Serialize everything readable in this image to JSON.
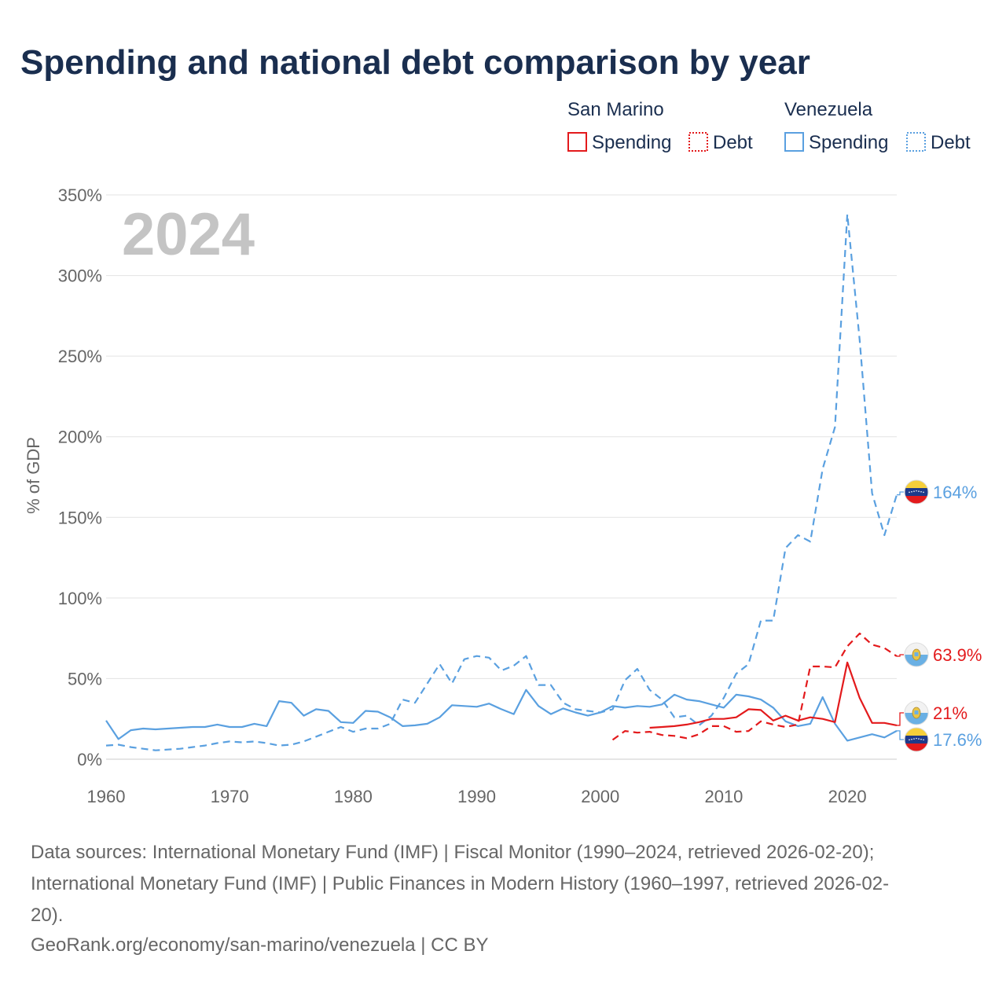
{
  "chart_data": {
    "type": "line",
    "title": "Spending and national debt comparison by year",
    "ylabel": "% of GDP",
    "xlabel": "",
    "xlim": [
      1960,
      2024
    ],
    "ylim": [
      0,
      350
    ],
    "x_ticks": [
      1960,
      1970,
      1980,
      1990,
      2000,
      2010,
      2020
    ],
    "y_ticks": [
      0,
      50,
      100,
      150,
      200,
      250,
      300,
      350
    ],
    "y_tick_labels": [
      "0%",
      "50%",
      "100%",
      "150%",
      "200%",
      "250%",
      "300%",
      "350%"
    ],
    "x_tick_labels": [
      "1960",
      "1970",
      "1980",
      "1990",
      "2000",
      "2010",
      "2020"
    ],
    "grid": true,
    "year_watermark": "2024",
    "legend": {
      "placement": "top-right",
      "groups": [
        {
          "name": "San Marino",
          "items": [
            "Spending",
            "Debt"
          ],
          "color": "#e31a1c"
        },
        {
          "name": "Venezuela",
          "items": [
            "Spending",
            "Debt"
          ],
          "color": "#5aa0e0"
        }
      ]
    },
    "series": [
      {
        "name": "Venezuela Debt",
        "country": "Venezuela",
        "metric": "Debt",
        "style": "dashed",
        "color": "#5aa0e0",
        "x": [
          1960,
          1961,
          1962,
          1963,
          1964,
          1965,
          1966,
          1967,
          1968,
          1969,
          1970,
          1971,
          1972,
          1973,
          1974,
          1975,
          1976,
          1977,
          1978,
          1979,
          1980,
          1981,
          1982,
          1983,
          1984,
          1985,
          1986,
          1987,
          1988,
          1989,
          1990,
          1991,
          1992,
          1993,
          1994,
          1995,
          1996,
          1997,
          1998,
          1999,
          2000,
          2001,
          2002,
          2003,
          2004,
          2005,
          2006,
          2007,
          2008,
          2009,
          2010,
          2011,
          2012,
          2013,
          2014,
          2015,
          2016,
          2017,
          2018,
          2019,
          2020,
          2021,
          2022,
          2023,
          2024
        ],
        "values": [
          8.5,
          9,
          7.5,
          6.5,
          5.5,
          6,
          6.5,
          7.5,
          8.5,
          10,
          11,
          10.5,
          11,
          10,
          8.5,
          9,
          11,
          14,
          17,
          20,
          17,
          19,
          19,
          22,
          37,
          35,
          47,
          59,
          47,
          62,
          64,
          63,
          55,
          58,
          64,
          46,
          46,
          35,
          31,
          30,
          29,
          31,
          49,
          56,
          43,
          37,
          26,
          27,
          21,
          27,
          38,
          53,
          59,
          86,
          86,
          131,
          139,
          135,
          180,
          206,
          338,
          260,
          165,
          139,
          164
        ]
      },
      {
        "name": "Venezuela Spending",
        "country": "Venezuela",
        "metric": "Spending",
        "style": "solid",
        "color": "#5aa0e0",
        "x": [
          1960,
          1961,
          1962,
          1963,
          1964,
          1965,
          1966,
          1967,
          1968,
          1969,
          1970,
          1971,
          1972,
          1973,
          1974,
          1975,
          1976,
          1977,
          1978,
          1979,
          1980,
          1981,
          1982,
          1983,
          1984,
          1985,
          1986,
          1987,
          1988,
          1989,
          1990,
          1991,
          1992,
          1993,
          1994,
          1995,
          1996,
          1997,
          1998,
          1999,
          2000,
          2001,
          2002,
          2003,
          2004,
          2005,
          2006,
          2007,
          2008,
          2009,
          2010,
          2011,
          2012,
          2013,
          2014,
          2015,
          2016,
          2017,
          2018,
          2019,
          2020,
          2021,
          2022,
          2023,
          2024
        ],
        "values": [
          24,
          12.5,
          18,
          19,
          18.5,
          19,
          19.5,
          20,
          20,
          21.5,
          20,
          20,
          22,
          20.5,
          36,
          35,
          27,
          31,
          30,
          23,
          22.5,
          30,
          29.5,
          26,
          20.5,
          21,
          22,
          26,
          33.5,
          33,
          32.5,
          34.5,
          31,
          28,
          43,
          33,
          28,
          31.5,
          29,
          27,
          29,
          33,
          32,
          33,
          32.5,
          34,
          40,
          37,
          36,
          34,
          32,
          40,
          39,
          37,
          32,
          23.5,
          20.5,
          22,
          38.5,
          22,
          11.5,
          13.5,
          15.5,
          13.5,
          17.6
        ]
      },
      {
        "name": "San Marino Debt",
        "country": "San Marino",
        "metric": "Debt",
        "style": "dashed",
        "color": "#e31a1c",
        "x": [
          2001,
          2002,
          2003,
          2004,
          2005,
          2006,
          2007,
          2008,
          2009,
          2010,
          2011,
          2012,
          2013,
          2014,
          2015,
          2016,
          2017,
          2018,
          2019,
          2020,
          2021,
          2022,
          2023,
          2024
        ],
        "values": [
          12,
          17.5,
          16.5,
          17,
          15,
          14.5,
          13,
          15.5,
          20.5,
          20.5,
          17,
          17.5,
          23.5,
          21.5,
          20,
          21.5,
          57.5,
          57.5,
          57,
          70,
          78,
          71,
          69,
          63.9
        ]
      },
      {
        "name": "San Marino Spending",
        "country": "San Marino",
        "metric": "Spending",
        "style": "solid",
        "color": "#e31a1c",
        "x": [
          2004,
          2005,
          2006,
          2007,
          2008,
          2009,
          2010,
          2011,
          2012,
          2013,
          2014,
          2015,
          2016,
          2017,
          2018,
          2019,
          2020,
          2021,
          2022,
          2023,
          2024
        ],
        "values": [
          19.5,
          20,
          20.5,
          21.5,
          23,
          25,
          25,
          26,
          31,
          30.5,
          24,
          27,
          24,
          26,
          25,
          23,
          60,
          38,
          22.5,
          22.5,
          21
        ]
      }
    ],
    "end_labels": [
      {
        "series": "Venezuela Debt",
        "text": "164%",
        "color": "#5aa0e0",
        "flag": "venezuela"
      },
      {
        "series": "San Marino Debt",
        "text": "63.9%",
        "color": "#e31a1c",
        "flag": "san-marino"
      },
      {
        "series": "San Marino Spending",
        "text": "21%",
        "color": "#e31a1c",
        "flag": "san-marino"
      },
      {
        "series": "Venezuela Spending",
        "text": "17.6%",
        "color": "#5aa0e0",
        "flag": "venezuela"
      }
    ]
  },
  "source_lines": [
    "Data sources: International Monetary Fund (IMF) | Fiscal Monitor (1990–2024, retrieved 2026-02-20);",
    "International Monetary Fund (IMF) | Public Finances in Modern History (1960–1997, retrieved 2026-02-",
    "20).",
    "GeoRank.org/economy/san-marino/venezuela | CC BY"
  ],
  "colors": {
    "san_marino": "#e31a1c",
    "venezuela": "#5aa0e0",
    "title": "#1a2e4f",
    "grid": "#e3e3e3",
    "watermark": "#c4c4c4"
  }
}
